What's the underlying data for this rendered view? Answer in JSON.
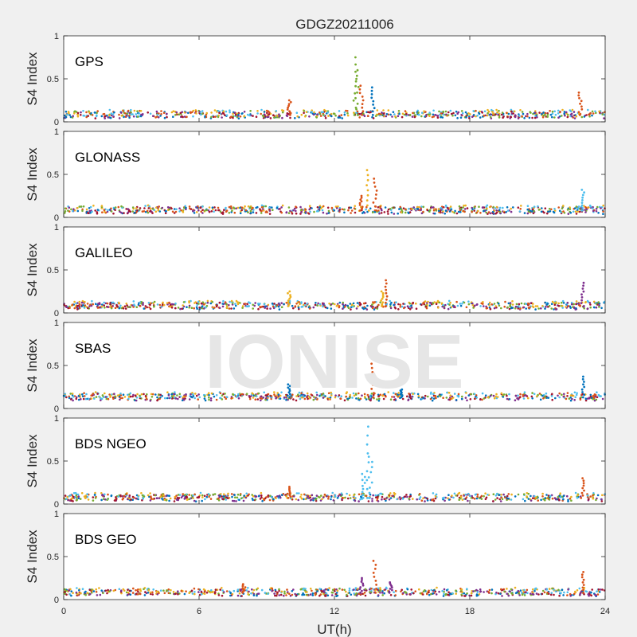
{
  "chart_data": {
    "type": "scatter",
    "title": "GDGZ20211006",
    "xlabel": "UT(h)",
    "ylabel": "S4 Index",
    "xlim": [
      0,
      24
    ],
    "ylim": [
      0,
      1
    ],
    "x_ticks": [
      0,
      6,
      12,
      18,
      24
    ],
    "y_ticks": [
      "0",
      "0.5",
      "1"
    ],
    "grid": false,
    "watermark": "IONISE",
    "colors": [
      "#0072BD",
      "#D95319",
      "#EDB120",
      "#7E2F8E",
      "#77AC30",
      "#4DBEEE",
      "#A2142F"
    ],
    "panels": [
      {
        "label": "GPS",
        "baseline": 0.08,
        "peaks": [
          {
            "x": 12.9,
            "y": 0.75,
            "color": 4
          },
          {
            "x": 13.0,
            "y": 0.6,
            "color": 4
          },
          {
            "x": 13.2,
            "y": 0.42,
            "color": 1
          },
          {
            "x": 13.7,
            "y": 0.4,
            "color": 0
          },
          {
            "x": 10.0,
            "y": 0.25,
            "color": 1
          },
          {
            "x": 22.9,
            "y": 0.34,
            "color": 1
          }
        ]
      },
      {
        "label": "GLONASS",
        "baseline": 0.08,
        "peaks": [
          {
            "x": 13.5,
            "y": 0.55,
            "color": 2
          },
          {
            "x": 13.8,
            "y": 0.45,
            "color": 1
          },
          {
            "x": 13.2,
            "y": 0.25,
            "color": 1
          },
          {
            "x": 23.0,
            "y": 0.32,
            "color": 5
          }
        ]
      },
      {
        "label": "GALILEO",
        "baseline": 0.08,
        "peaks": [
          {
            "x": 14.3,
            "y": 0.38,
            "color": 1
          },
          {
            "x": 14.1,
            "y": 0.25,
            "color": 2
          },
          {
            "x": 10.0,
            "y": 0.25,
            "color": 2
          },
          {
            "x": 23.0,
            "y": 0.35,
            "color": 3
          }
        ]
      },
      {
        "label": "SBAS",
        "baseline": 0.13,
        "peaks": [
          {
            "x": 13.7,
            "y": 0.52,
            "color": 1
          },
          {
            "x": 10.0,
            "y": 0.28,
            "color": 0
          },
          {
            "x": 15.0,
            "y": 0.22,
            "color": 0
          },
          {
            "x": 23.0,
            "y": 0.37,
            "color": 0
          }
        ]
      },
      {
        "label": "BDS NGEO",
        "baseline": 0.07,
        "peaks": [
          {
            "x": 13.5,
            "y": 0.9,
            "color": 5
          },
          {
            "x": 13.6,
            "y": 0.55,
            "color": 5
          },
          {
            "x": 13.3,
            "y": 0.35,
            "color": 5
          },
          {
            "x": 10.0,
            "y": 0.2,
            "color": 1
          },
          {
            "x": 23.0,
            "y": 0.3,
            "color": 1
          }
        ]
      },
      {
        "label": "BDS GEO",
        "baseline": 0.08,
        "peaks": [
          {
            "x": 13.8,
            "y": 0.45,
            "color": 1
          },
          {
            "x": 13.2,
            "y": 0.25,
            "color": 3
          },
          {
            "x": 14.5,
            "y": 0.2,
            "color": 3
          },
          {
            "x": 8.0,
            "y": 0.18,
            "color": 1
          },
          {
            "x": 23.0,
            "y": 0.32,
            "color": 1
          }
        ]
      }
    ]
  }
}
